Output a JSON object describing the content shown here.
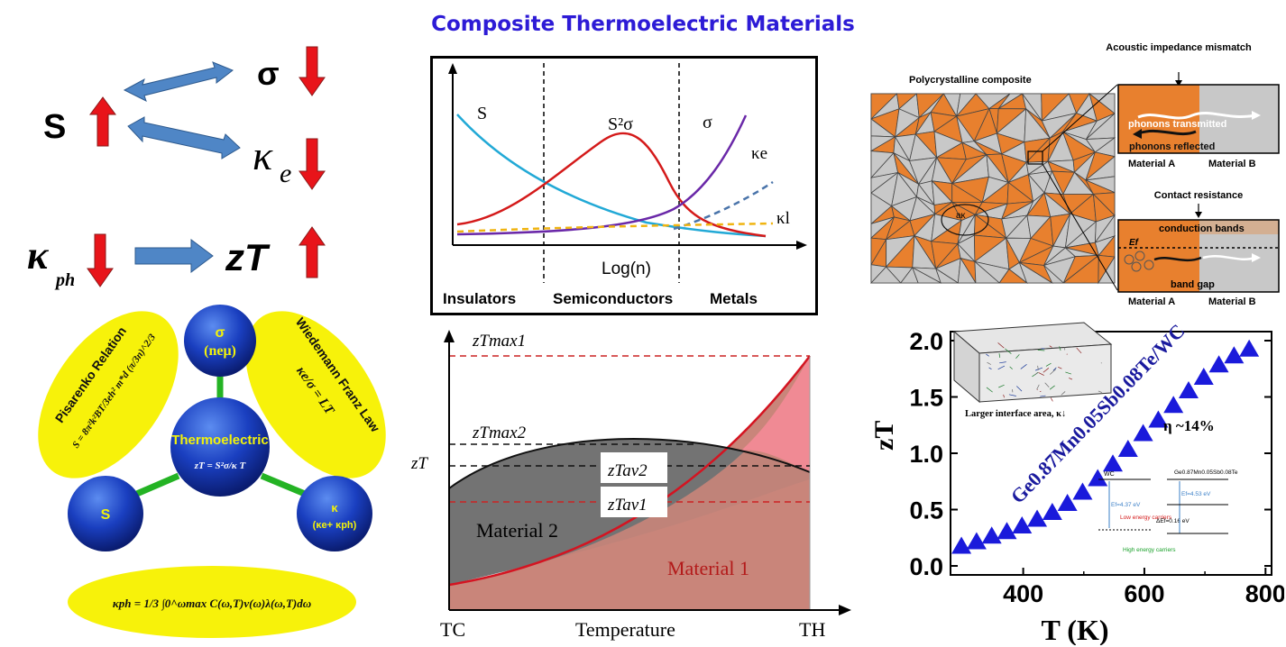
{
  "title": "Composite Thermoelectric Materials",
  "tradeoff": {
    "S": "S",
    "sigma": "σ",
    "kappa_e_base": "κ",
    "kappa_e_sub": "e",
    "kappa_ph_base": "κ",
    "kappa_ph_sub": "ph",
    "zT": "zT",
    "colors": {
      "up_arrow": "#e8141a",
      "down_arrow": "#e8141a",
      "double_arrow": "#4a7fc1"
    }
  },
  "molecule": {
    "sigma_top": "σ",
    "sigma_bottom": "(neμ)",
    "center_label": "Thermoelectric",
    "center_formula": "zT = S²σ/κ T",
    "s_ball": "S",
    "kappa_ball_top": "κ",
    "kappa_ball_bottom": "(κe+ κph)",
    "pisarenko_title": "Pisarenko Relation",
    "pisarenko_formula": "S = 8π²k²BT/3eh² m*d (π/3n)^2/3",
    "wiedemann_title": "Wiedemann Franz Law",
    "wiedemann_formula": "κe/σ = LT",
    "kappa_ph_formula": "κph = 1/3 ∫0^ωmax C(ω,T)ν(ω)λ(ω,T)dω"
  },
  "conductivity_chart": {
    "labels": {
      "S": "S",
      "S2sigma": "S²σ",
      "sigma": "σ",
      "kappa_e": "κe",
      "kappa_l": "κl"
    },
    "xlabel": "Log(n)",
    "regions": [
      "Insulators",
      "Semiconductors",
      "Metals"
    ]
  },
  "zt_temp_chart": {
    "ylabel": "zT",
    "ztmax1": "zTmax1",
    "ztmax2": "zTmax2",
    "ztav2": "zTav2",
    "ztav1": "zTav1",
    "material2": "Material 2",
    "material1": "Material 1",
    "xlabel": "Temperature",
    "tc": "TC",
    "th": "TH"
  },
  "composite": {
    "poly_label": "Polycrystalline composite",
    "acoustic_title": "Acoustic impedance mismatch",
    "phonons_transmitted": "phonons transmitted",
    "phonons_reflected": "phonons reflected",
    "matA1": "Material A",
    "matB1": "Material B",
    "contact_title": "Contact resistance",
    "conduction_bands": "conduction bands",
    "ef": "Ef",
    "band_gap": "band gap",
    "matA2": "Material A",
    "matB2": "Material B",
    "ak": "aκ"
  },
  "chart_data": {
    "type": "scatter",
    "title": "",
    "xlabel": "T (K)",
    "ylabel": "zT",
    "xlim": [
      280,
      810
    ],
    "ylim": [
      -0.08,
      2.08
    ],
    "xticks": [
      400,
      600,
      800
    ],
    "yticks": [
      0.0,
      0.5,
      1.0,
      1.5,
      2.0
    ],
    "series": [
      {
        "name": "Ge0.87Mn0.05Sb0.08Te/WC",
        "x": [
          298,
          323,
          348,
          373,
          398,
          423,
          448,
          473,
          498,
          523,
          548,
          573,
          598,
          623,
          648,
          673,
          698,
          723,
          748,
          773
        ],
        "y": [
          0.18,
          0.22,
          0.27,
          0.31,
          0.36,
          0.42,
          0.48,
          0.56,
          0.66,
          0.78,
          0.91,
          1.04,
          1.18,
          1.3,
          1.43,
          1.56,
          1.68,
          1.79,
          1.87,
          1.93
        ],
        "color": "#1a1adb"
      }
    ],
    "annotations": {
      "series_label": "Ge0.87Mn0.05Sb0.08Te/WC",
      "efficiency": "η ~14%",
      "inset_caption": "Larger interface area, κ↓",
      "wc": "WC",
      "gemnsbte": "Ge0.87Mn0.05Sb0.08Te",
      "ef1": "Ef=4.37 eV",
      "ef2": "Ef=4.53 eV",
      "def": "ΔEf=0.16 eV",
      "low": "Low energy carriers",
      "high": "High energy carriers"
    }
  }
}
